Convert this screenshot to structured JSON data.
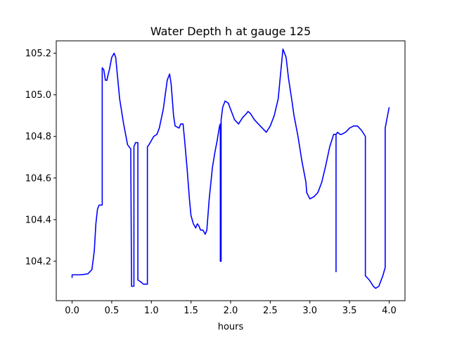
{
  "chart_data": {
    "type": "line",
    "title": "Water Depth h at gauge 125",
    "xlabel": "hours",
    "ylabel": "",
    "xlim": [
      -0.2,
      4.2
    ],
    "ylim": [
      104.0106,
      105.2594
    ],
    "xticks": [
      0.0,
      0.5,
      1.0,
      1.5,
      2.0,
      2.5,
      3.0,
      3.5,
      4.0
    ],
    "xtick_labels": [
      "0.0",
      "0.5",
      "1.0",
      "1.5",
      "2.0",
      "2.5",
      "3.0",
      "3.5",
      "4.0"
    ],
    "yticks": [
      104.2,
      104.4,
      104.6,
      104.8,
      105.0,
      105.2
    ],
    "ytick_labels": [
      "104.2",
      "104.4",
      "104.6",
      "104.8",
      "105.0",
      "105.2"
    ],
    "grid": false,
    "legend": "none",
    "series": [
      {
        "color": "#0000ff",
        "x": [
          0.0,
          0.0,
          0.05,
          0.1,
          0.15,
          0.2,
          0.25,
          0.28,
          0.3,
          0.32,
          0.34,
          0.36,
          0.38,
          0.38,
          0.4,
          0.42,
          0.44,
          0.45,
          0.47,
          0.5,
          0.53,
          0.55,
          0.57,
          0.6,
          0.65,
          0.7,
          0.74,
          0.75,
          0.75,
          0.78,
          0.78,
          0.8,
          0.82,
          0.83,
          0.83,
          0.87,
          0.9,
          0.95,
          0.95,
          0.97,
          1.0,
          1.03,
          1.07,
          1.1,
          1.15,
          1.2,
          1.23,
          1.25,
          1.28,
          1.3,
          1.35,
          1.37,
          1.4,
          1.42,
          1.45,
          1.48,
          1.5,
          1.53,
          1.56,
          1.58,
          1.6,
          1.62,
          1.65,
          1.68,
          1.7,
          1.73,
          1.77,
          1.8,
          1.83,
          1.86,
          1.87,
          1.87,
          1.88,
          1.88,
          1.9,
          1.93,
          1.97,
          2.0,
          2.05,
          2.1,
          2.15,
          2.2,
          2.22,
          2.25,
          2.3,
          2.35,
          2.4,
          2.45,
          2.5,
          2.55,
          2.6,
          2.63,
          2.66,
          2.7,
          2.73,
          2.77,
          2.8,
          2.85,
          2.9,
          2.95,
          2.96,
          3.0,
          3.05,
          3.1,
          3.15,
          3.2,
          3.25,
          3.3,
          3.33,
          3.33,
          3.33,
          3.35,
          3.38,
          3.4,
          3.45,
          3.5,
          3.55,
          3.6,
          3.65,
          3.7,
          3.7,
          3.75,
          3.8,
          3.83,
          3.87,
          3.92,
          3.95,
          3.95,
          3.97,
          4.0
        ],
        "y": [
          104.12,
          104.135,
          104.135,
          104.135,
          104.137,
          104.14,
          104.16,
          104.25,
          104.38,
          104.45,
          104.47,
          104.47,
          104.47,
          105.13,
          105.12,
          105.07,
          105.07,
          105.09,
          105.12,
          105.18,
          105.2,
          105.18,
          105.1,
          104.98,
          104.86,
          104.76,
          104.74,
          104.08,
          104.08,
          104.08,
          104.75,
          104.77,
          104.77,
          104.77,
          104.11,
          104.1,
          104.09,
          104.09,
          104.75,
          104.76,
          104.78,
          104.8,
          104.81,
          104.84,
          104.93,
          105.07,
          105.1,
          105.05,
          104.9,
          104.85,
          104.84,
          104.86,
          104.86,
          104.78,
          104.65,
          104.5,
          104.42,
          104.38,
          104.36,
          104.38,
          104.37,
          104.35,
          104.35,
          104.33,
          104.35,
          104.5,
          104.65,
          104.72,
          104.78,
          104.85,
          104.86,
          104.2,
          104.2,
          104.88,
          104.94,
          104.97,
          104.96,
          104.93,
          104.88,
          104.86,
          104.89,
          104.91,
          104.92,
          104.91,
          104.88,
          104.86,
          104.84,
          104.82,
          104.85,
          104.9,
          104.98,
          105.1,
          105.22,
          105.18,
          105.08,
          104.98,
          104.9,
          104.8,
          104.68,
          104.58,
          104.53,
          104.5,
          104.51,
          104.53,
          104.58,
          104.66,
          104.75,
          104.81,
          104.81,
          104.15,
          104.81,
          104.82,
          104.81,
          104.81,
          104.82,
          104.84,
          104.85,
          104.85,
          104.83,
          104.8,
          104.13,
          104.11,
          104.08,
          104.07,
          104.08,
          104.13,
          104.17,
          104.84,
          104.88,
          104.94
        ]
      }
    ]
  }
}
